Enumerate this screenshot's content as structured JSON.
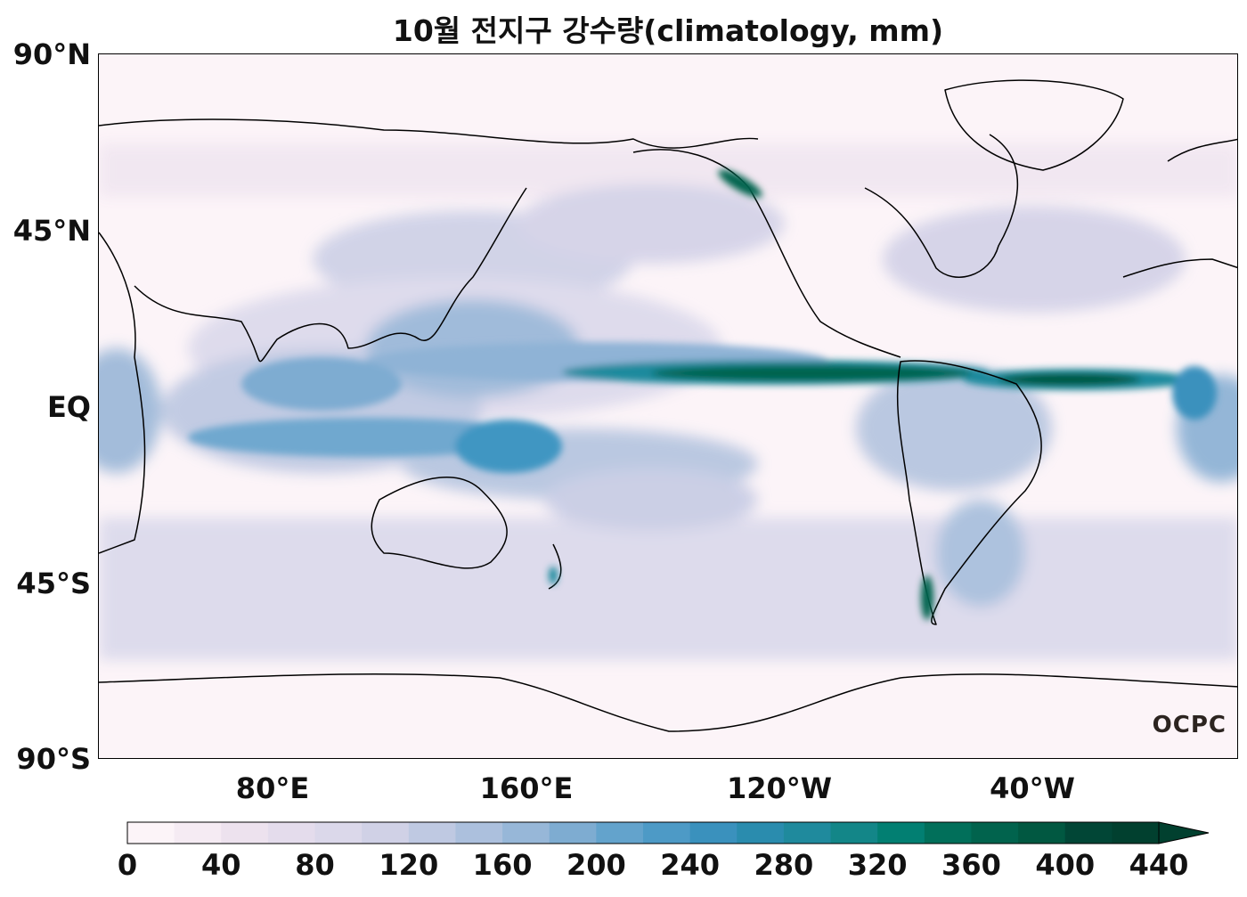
{
  "title": "10월 전지구 강수량(climatology, mm)",
  "map": {
    "projection": "PlateCarree",
    "central_longitude": 180,
    "lat_ticks": [
      "90°N",
      "45°N",
      "EQ",
      "45°S",
      "90°S"
    ],
    "lon_ticks": [
      "80°E",
      "160°E",
      "120°W",
      "40°W"
    ],
    "coastlines": true,
    "colormap": "PuBuGn",
    "logo": "OCPC"
  },
  "colorbar": {
    "orientation": "horizontal",
    "extend": "max",
    "min": 0,
    "max": 440,
    "step": 20,
    "tick_labels": [
      "0",
      "40",
      "80",
      "120",
      "160",
      "200",
      "240",
      "280",
      "320",
      "360",
      "400",
      "440"
    ],
    "colors": [
      "#fcf4f8",
      "#f5ebf3",
      "#ede2ee",
      "#e4dcec",
      "#dbd8ea",
      "#d0d1e6",
      "#bfc9e2",
      "#acc0dd",
      "#97b7d8",
      "#7eacd1",
      "#63a3cc",
      "#4d9ac6",
      "#3a91bd",
      "#2a8cae",
      "#1f8a9d",
      "#138688",
      "#027f72",
      "#016f5a",
      "#01634d",
      "#015841",
      "#014636",
      "#01402f"
    ]
  }
}
